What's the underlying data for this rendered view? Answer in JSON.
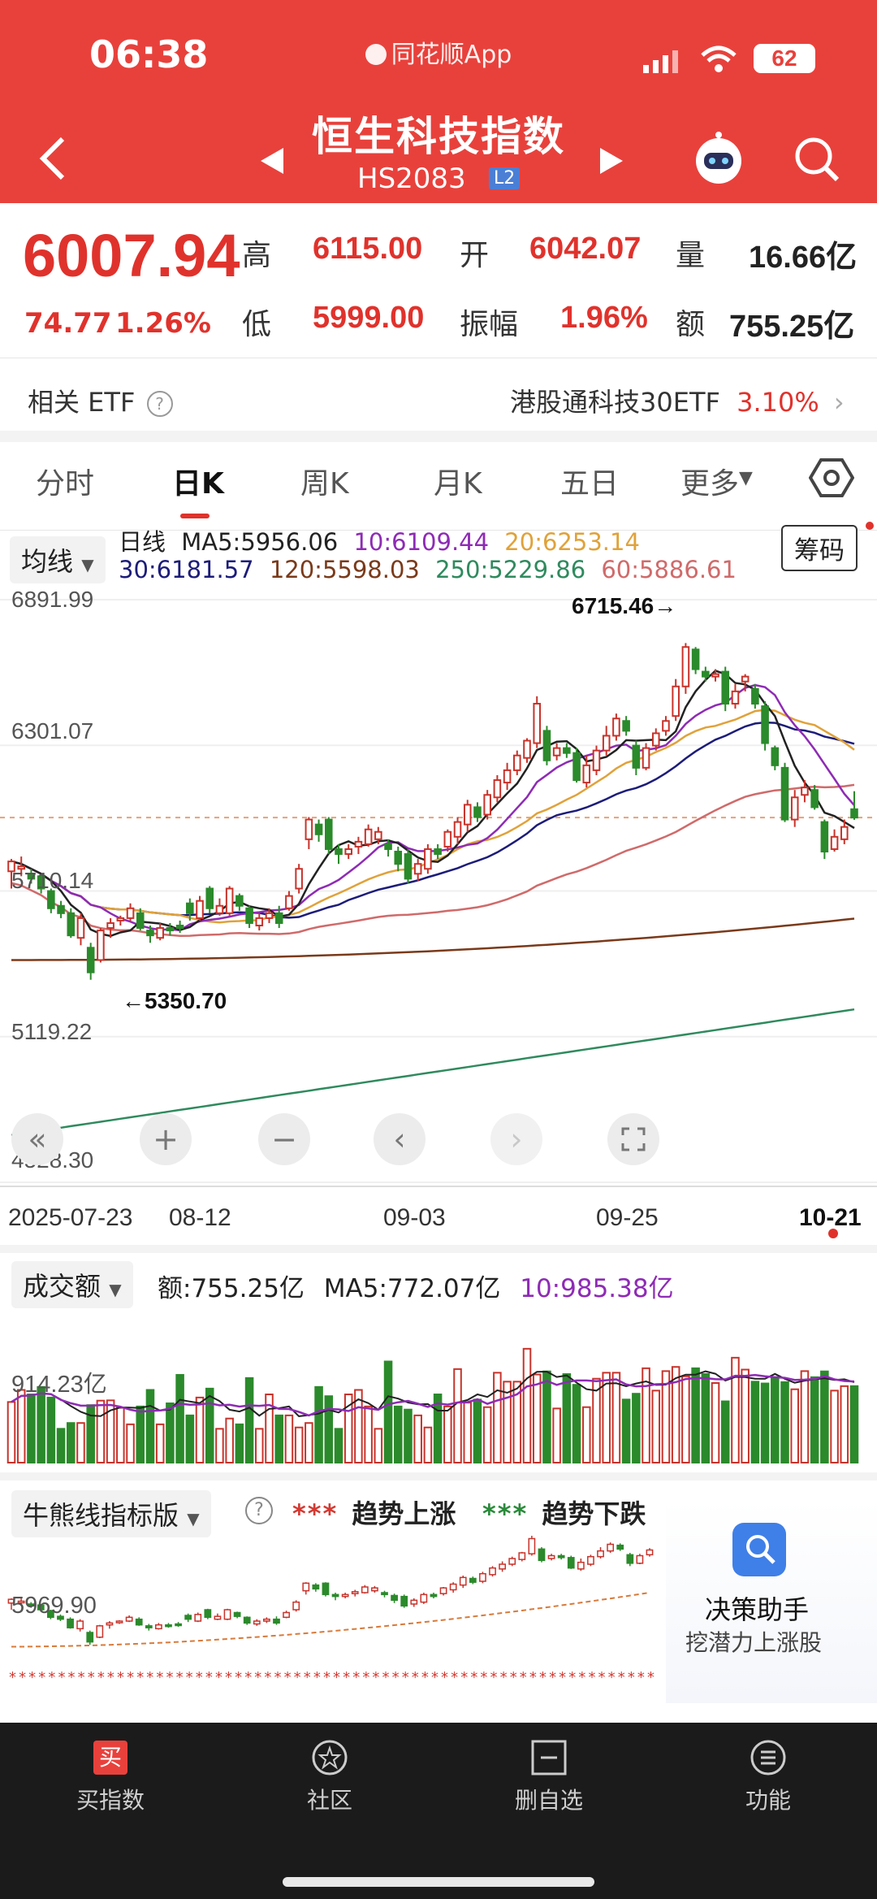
{
  "status_bar": {
    "time": "06:38",
    "app_name": "同花顺App",
    "battery": "62"
  },
  "header": {
    "title": "恒生科技指数",
    "code": "HS2083",
    "level_badge": "L2"
  },
  "quote": {
    "price": "6007.94",
    "change": "74.77",
    "change_pct": "1.26%",
    "high_label": "高",
    "high": "6115.00",
    "open_label": "开",
    "open": "6042.07",
    "volume_label": "量",
    "volume": "16.66亿",
    "low_label": "低",
    "low": "5999.00",
    "amplitude_label": "振幅",
    "amplitude": "1.96%",
    "amount_label": "额",
    "amount": "755.25亿"
  },
  "etf": {
    "label": "相关 ETF",
    "name": "港股通科技30ETF",
    "pct": "3.10%"
  },
  "tabs": [
    "分时",
    "日K",
    "周K",
    "月K",
    "五日",
    "更多"
  ],
  "active_tab": 1,
  "ma_bar": {
    "selector": "均线",
    "type": "日线",
    "chips_button": "筹码",
    "ma5": "MA5:5956.06",
    "ma10": "10:6109.44",
    "ma20": "20:6253.14",
    "ma30": "30:6181.57",
    "ma120": "120:5598.03",
    "ma250": "250:5229.86",
    "ma60": "60:5886.61",
    "colors": {
      "ma5": "#222222",
      "ma10": "#8e2bb5",
      "ma20": "#e0a23a",
      "ma30": "#1c1c7a",
      "ma120": "#7a3a1a",
      "ma250": "#2f8a5e",
      "ma60": "#d06a6a"
    }
  },
  "kline": {
    "y_labels": [
      "6891.99",
      "6301.07",
      "5710.14",
      "5119.22",
      "4528.30"
    ],
    "max_label": "6715.46→",
    "min_label": "←5350.70",
    "x_labels": [
      "2025-07-23",
      "08-12",
      "09-03",
      "09-25",
      "10-21"
    ]
  },
  "volume": {
    "selector": "成交额",
    "amount": "额:755.25亿",
    "ma5": "MA5:772.07亿",
    "ma10": "10:985.38亿",
    "y_label": "914.23亿"
  },
  "bull_bear": {
    "selector": "牛熊线指标版",
    "up_label": "趋势上涨",
    "down_label": "趋势下跌",
    "y_label": "5969.90"
  },
  "assistant": {
    "title": "决策助手",
    "subtitle": "挖潜力上涨股"
  },
  "bottom_nav": [
    "买指数",
    "社区",
    "删自选",
    "功能"
  ],
  "chart_data": {
    "type": "candlestick",
    "title": "恒生科技指数 日K",
    "ylim": [
      4528.3,
      6891.99
    ],
    "x_range": [
      "2025-07-23",
      "10-21"
    ],
    "candles": [
      [
        5790,
        5830,
        5720,
        5840
      ],
      [
        5800,
        5810,
        5770,
        5850
      ],
      [
        5780,
        5760,
        5740,
        5800
      ],
      [
        5770,
        5720,
        5700,
        5780
      ],
      [
        5710,
        5640,
        5620,
        5720
      ],
      [
        5650,
        5620,
        5600,
        5670
      ],
      [
        5620,
        5530,
        5520,
        5640
      ],
      [
        5520,
        5600,
        5490,
        5620
      ],
      [
        5480,
        5380,
        5350,
        5500
      ],
      [
        5430,
        5550,
        5420,
        5560
      ],
      [
        5560,
        5580,
        5520,
        5600
      ],
      [
        5590,
        5600,
        5570,
        5610
      ],
      [
        5600,
        5640,
        5590,
        5660
      ],
      [
        5620,
        5560,
        5550,
        5640
      ],
      [
        5550,
        5530,
        5500,
        5570
      ],
      [
        5520,
        5560,
        5510,
        5580
      ],
      [
        5560,
        5550,
        5530,
        5580
      ],
      [
        5570,
        5560,
        5540,
        5590
      ],
      [
        5660,
        5620,
        5590,
        5680
      ],
      [
        5600,
        5670,
        5590,
        5690
      ],
      [
        5720,
        5640,
        5620,
        5730
      ],
      [
        5620,
        5650,
        5610,
        5680
      ],
      [
        5620,
        5720,
        5610,
        5730
      ],
      [
        5690,
        5650,
        5630,
        5700
      ],
      [
        5640,
        5580,
        5560,
        5650
      ],
      [
        5570,
        5600,
        5550,
        5620
      ],
      [
        5600,
        5620,
        5580,
        5640
      ],
      [
        5620,
        5580,
        5560,
        5650
      ],
      [
        5640,
        5690,
        5630,
        5710
      ],
      [
        5720,
        5800,
        5700,
        5820
      ],
      [
        5920,
        6000,
        5880,
        6010
      ],
      [
        5980,
        5940,
        5910,
        6000
      ],
      [
        6000,
        5880,
        5860,
        6010
      ],
      [
        5880,
        5860,
        5820,
        5900
      ],
      [
        5860,
        5880,
        5840,
        5900
      ],
      [
        5890,
        5910,
        5860,
        5930
      ],
      [
        5900,
        5960,
        5890,
        5980
      ],
      [
        5920,
        5950,
        5900,
        5970
      ],
      [
        5900,
        5880,
        5850,
        5920
      ],
      [
        5870,
        5820,
        5790,
        5890
      ],
      [
        5860,
        5760,
        5740,
        5880
      ],
      [
        5780,
        5820,
        5750,
        5840
      ],
      [
        5800,
        5880,
        5780,
        5900
      ],
      [
        5880,
        5860,
        5840,
        5900
      ],
      [
        5890,
        5950,
        5870,
        5960
      ],
      [
        5930,
        5990,
        5900,
        6010
      ],
      [
        5980,
        6060,
        5950,
        6080
      ],
      [
        6050,
        6010,
        5990,
        6070
      ],
      [
        6020,
        6100,
        6000,
        6120
      ],
      [
        6090,
        6160,
        6070,
        6180
      ],
      [
        6150,
        6200,
        6120,
        6230
      ],
      [
        6200,
        6260,
        6180,
        6280
      ],
      [
        6250,
        6320,
        6230,
        6330
      ],
      [
        6310,
        6470,
        6290,
        6500
      ],
      [
        6360,
        6240,
        6220,
        6380
      ],
      [
        6260,
        6290,
        6240,
        6310
      ],
      [
        6290,
        6270,
        6250,
        6310
      ],
      [
        6270,
        6160,
        6150,
        6290
      ],
      [
        6150,
        6220,
        6130,
        6260
      ],
      [
        6200,
        6280,
        6180,
        6300
      ],
      [
        6280,
        6340,
        6260,
        6380
      ],
      [
        6340,
        6410,
        6320,
        6430
      ],
      [
        6400,
        6360,
        6340,
        6420
      ],
      [
        6300,
        6210,
        6180,
        6320
      ],
      [
        6210,
        6290,
        6200,
        6310
      ],
      [
        6300,
        6350,
        6280,
        6370
      ],
      [
        6360,
        6400,
        6340,
        6420
      ],
      [
        6420,
        6540,
        6400,
        6570
      ],
      [
        6540,
        6700,
        6510,
        6716
      ],
      [
        6690,
        6610,
        6590,
        6700
      ],
      [
        6600,
        6580,
        6560,
        6620
      ],
      [
        6580,
        6590,
        6560,
        6610
      ],
      [
        6600,
        6470,
        6440,
        6620
      ],
      [
        6470,
        6520,
        6450,
        6550
      ],
      [
        6560,
        6580,
        6520,
        6590
      ],
      [
        6530,
        6470,
        6450,
        6550
      ],
      [
        6460,
        6310,
        6280,
        6480
      ],
      [
        6290,
        6220,
        6200,
        6300
      ],
      [
        6210,
        6000,
        5990,
        6230
      ],
      [
        6000,
        6090,
        5970,
        6120
      ],
      [
        6100,
        6130,
        6070,
        6160
      ],
      [
        6120,
        6050,
        6040,
        6140
      ],
      [
        5990,
        5870,
        5840,
        6000
      ],
      [
        5880,
        5930,
        5870,
        5960
      ],
      [
        5920,
        5970,
        5900,
        6000
      ],
      [
        6042,
        6007.94,
        5999,
        6115
      ]
    ]
  }
}
